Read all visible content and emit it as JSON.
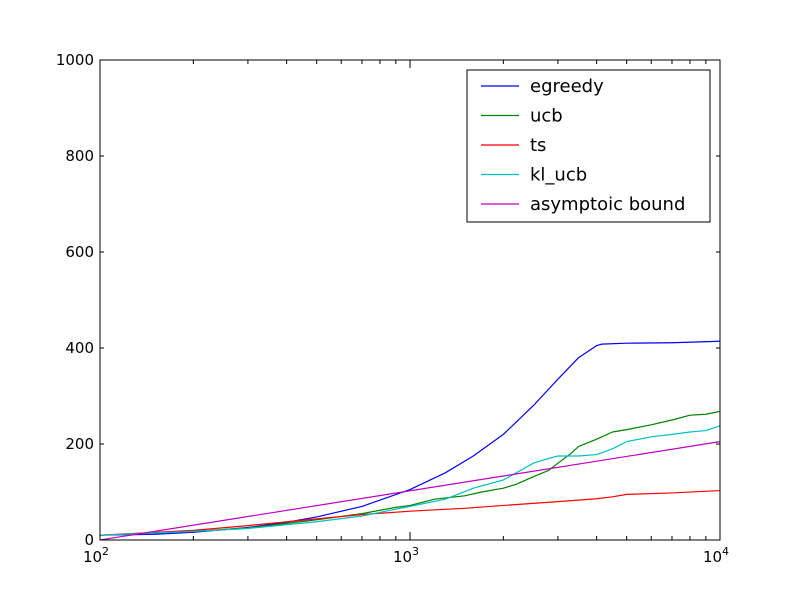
{
  "chart_data": {
    "type": "line",
    "title": "",
    "xlabel": "",
    "ylabel": "",
    "xscale": "log",
    "xlim": [
      100,
      10000
    ],
    "ylim": [
      0,
      1000
    ],
    "grid": false,
    "legend_position": "top-right",
    "x_ticks": [
      {
        "value": 100,
        "base": "10",
        "exp": "2"
      },
      {
        "value": 1000,
        "base": "10",
        "exp": "3"
      },
      {
        "value": 10000,
        "base": "10",
        "exp": "4"
      }
    ],
    "y_ticks": [
      {
        "value": 0,
        "label": "0"
      },
      {
        "value": 200,
        "label": "200"
      },
      {
        "value": 400,
        "label": "400"
      },
      {
        "value": 600,
        "label": "600"
      },
      {
        "value": 800,
        "label": "800"
      },
      {
        "value": 1000,
        "label": "1000"
      }
    ],
    "series": [
      {
        "name": "egreedy",
        "color": "#0000ff",
        "x": [
          100,
          150,
          200,
          300,
          400,
          500,
          700,
          1000,
          1300,
          1600,
          2000,
          2500,
          3000,
          3500,
          4000,
          4150,
          5000,
          7000,
          10000
        ],
        "y": [
          10,
          12,
          16,
          26,
          37,
          48,
          70,
          105,
          140,
          175,
          220,
          280,
          335,
          380,
          405,
          408,
          410,
          411,
          414
        ]
      },
      {
        "name": "ucb",
        "color": "#008000",
        "x": [
          100,
          200,
          300,
          500,
          700,
          900,
          1000,
          1200,
          1500,
          1700,
          2000,
          2200,
          2500,
          2800,
          3000,
          3300,
          3500,
          4000,
          4500,
          5000,
          6000,
          7000,
          8000,
          9000,
          10000
        ],
        "y": [
          10,
          18,
          25,
          42,
          55,
          68,
          72,
          85,
          92,
          100,
          108,
          116,
          132,
          145,
          160,
          180,
          195,
          210,
          225,
          230,
          240,
          250,
          260,
          262,
          268
        ]
      },
      {
        "name": "ts",
        "color": "#ff0000",
        "x": [
          100,
          200,
          300,
          500,
          700,
          1000,
          1500,
          2000,
          3000,
          4000,
          4500,
          5000,
          7000,
          10000
        ],
        "y": [
          10,
          20,
          30,
          44,
          53,
          60,
          66,
          72,
          80,
          86,
          90,
          95,
          98,
          103
        ]
      },
      {
        "name": "kl_ucb",
        "color": "#00bfbf",
        "x": [
          100,
          200,
          300,
          500,
          700,
          1000,
          1300,
          1600,
          2000,
          2500,
          2800,
          3000,
          3500,
          4000,
          4500,
          5000,
          6000,
          7000,
          8000,
          9000,
          10000
        ],
        "y": [
          10,
          18,
          24,
          38,
          50,
          70,
          85,
          108,
          125,
          160,
          170,
          175,
          175,
          178,
          190,
          205,
          215,
          220,
          225,
          228,
          238
        ]
      },
      {
        "name": "asymptoic bound",
        "color": "#bf00bf",
        "x": [
          100,
          10000
        ],
        "y": [
          0,
          205
        ]
      }
    ]
  }
}
